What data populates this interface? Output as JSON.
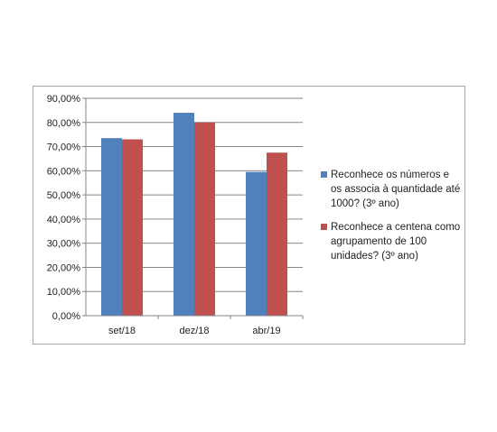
{
  "chart_data": {
    "type": "bar",
    "categories": [
      "set/18",
      "dez/18",
      "abr/19"
    ],
    "series": [
      {
        "name": "Reconhece os números e os associa à quantidade até 1000? (3º ano)",
        "color": "#4f81bd",
        "values": [
          73.5,
          84.0,
          59.5
        ]
      },
      {
        "name": "Reconhece a centena como agrupamento de 100 unidades? (3º ano)",
        "color": "#c0504d",
        "values": [
          73.0,
          80.0,
          67.5
        ]
      }
    ],
    "ylim": [
      0,
      90
    ],
    "yticks": [
      0,
      10,
      20,
      30,
      40,
      50,
      60,
      70,
      80,
      90
    ],
    "ytick_labels": [
      "0,00%",
      "10,00%",
      "20,00%",
      "30,00%",
      "40,00%",
      "50,00%",
      "60,00%",
      "70,00%",
      "80,00%",
      "90,00%"
    ],
    "grid": true,
    "legend_position": "right"
  }
}
